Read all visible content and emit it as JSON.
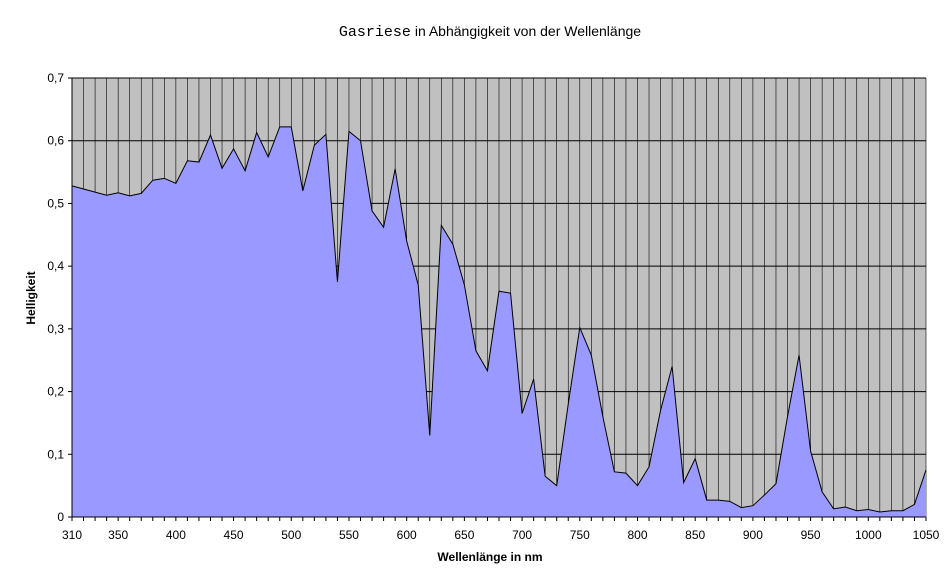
{
  "chart_data": {
    "type": "area",
    "title_main": "Gasriese",
    "title_rest": " in Abhängigkeit von der Wellenlänge",
    "xlabel": "Wellenlänge in nm",
    "ylabel": "Helligkeit",
    "xlim": [
      310,
      1050
    ],
    "ylim": [
      0,
      0.7
    ],
    "y_ticks": [
      "0",
      "0,1",
      "0,2",
      "0,3",
      "0,4",
      "0,5",
      "0,6",
      "0,7"
    ],
    "x_tick_labels": [
      "310",
      "350",
      "400",
      "450",
      "500",
      "550",
      "600",
      "650",
      "700",
      "750",
      "800",
      "850",
      "900",
      "950",
      "1000",
      "1050"
    ],
    "grid": "horizontal major, vertical per 10 nm",
    "colors": {
      "plot_bg": "#c0c0c0",
      "area_fill": "#9999ff",
      "line": "#000000"
    },
    "x": [
      310,
      320,
      330,
      340,
      350,
      360,
      370,
      380,
      390,
      400,
      410,
      420,
      430,
      440,
      450,
      460,
      470,
      480,
      490,
      500,
      510,
      520,
      530,
      540,
      550,
      560,
      570,
      580,
      590,
      600,
      610,
      620,
      630,
      640,
      650,
      660,
      670,
      680,
      690,
      700,
      710,
      720,
      730,
      740,
      750,
      760,
      770,
      780,
      790,
      800,
      810,
      820,
      830,
      840,
      850,
      860,
      870,
      880,
      890,
      900,
      910,
      920,
      930,
      940,
      950,
      960,
      970,
      980,
      990,
      1000,
      1010,
      1020,
      1030,
      1040,
      1050
    ],
    "values": [
      0.528,
      0.523,
      0.518,
      0.513,
      0.517,
      0.512,
      0.516,
      0.537,
      0.54,
      0.532,
      0.568,
      0.566,
      0.609,
      0.556,
      0.587,
      0.552,
      0.613,
      0.574,
      0.622,
      0.622,
      0.52,
      0.593,
      0.61,
      0.375,
      0.615,
      0.6,
      0.488,
      0.462,
      0.555,
      0.44,
      0.37,
      0.13,
      0.465,
      0.435,
      0.37,
      0.265,
      0.233,
      0.36,
      0.357,
      0.165,
      0.22,
      0.065,
      0.05,
      0.18,
      0.302,
      0.258,
      0.16,
      0.072,
      0.07,
      0.05,
      0.08,
      0.17,
      0.24,
      0.055,
      0.093,
      0.027,
      0.027,
      0.025,
      0.015,
      0.018,
      0.035,
      0.053,
      0.16,
      0.258,
      0.105,
      0.04,
      0.013,
      0.016,
      0.01,
      0.012,
      0.008,
      0.01,
      0.01,
      0.02,
      0.075
    ]
  }
}
